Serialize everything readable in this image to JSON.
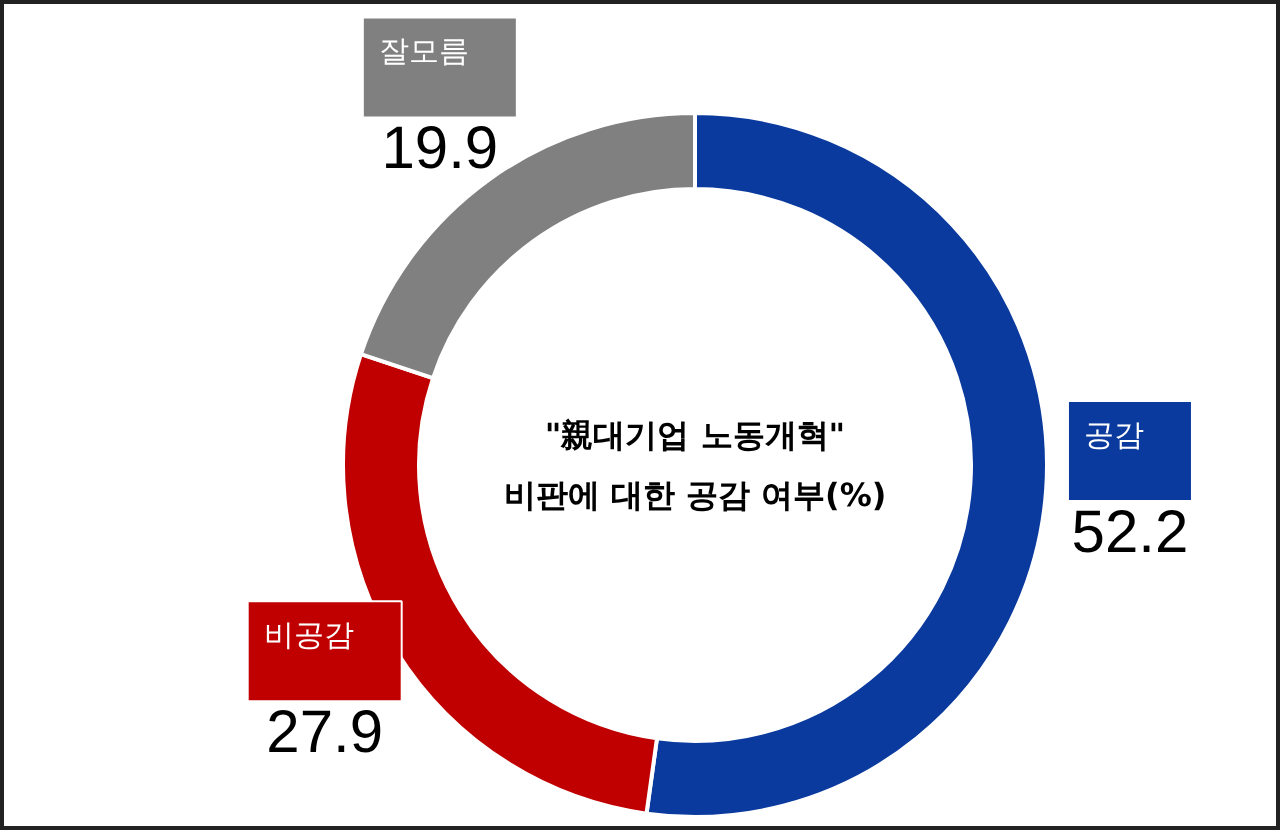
{
  "chart_data": {
    "type": "donut",
    "title": "\"親대기업 노동개혁\"\n비판에 대한 공감 여부(%)",
    "categories": [
      "공감",
      "비공감",
      "잘모름"
    ],
    "values": [
      52.2,
      27.9,
      19.9
    ],
    "colors": [
      "#0a3a9e",
      "#c00000",
      "#808080"
    ],
    "data_labels": true,
    "legend": false
  }
}
